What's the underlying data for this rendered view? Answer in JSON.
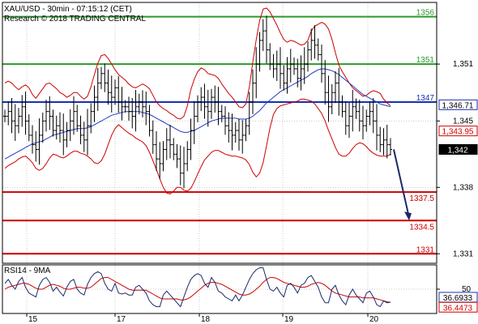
{
  "header": {
    "line1": "XAU/USD - 30min - 07:15:12 (CET)",
    "line2": "Research © 2018 TRADING CENTRAL"
  },
  "colors": {
    "candle": "#000000",
    "band": "#cc0000",
    "ma": "#1f3cc4",
    "support": "#cc0000",
    "resistance": "#2a9a2a",
    "pivot": "#1a2fb0",
    "arrow": "#1a2a6a",
    "rsi": "#1a2a6a",
    "rsi_ma": "#cc0000",
    "grid": "#c8c8c8",
    "frame": "#000000"
  },
  "chart_data": [
    {
      "type": "candlestick",
      "title": "XAU/USD - 30min - 07:15:12 (CET)",
      "subtitle": "Research © 2018 TRADING CENTRAL",
      "ylim": [
        1330,
        1357.5
      ],
      "y_ticks": [
        "1,351",
        "1,345",
        "1,338",
        "1,331"
      ],
      "y_tick_values": [
        1351,
        1345,
        1338,
        1331
      ],
      "x_ticks": [
        "15",
        "17",
        "18",
        "19",
        "20"
      ],
      "grid": true,
      "levels": [
        {
          "label": "1356",
          "value": 1356,
          "kind": "resistance"
        },
        {
          "label": "1351",
          "value": 1351,
          "kind": "resistance"
        },
        {
          "label": "1347",
          "value": 1347,
          "kind": "pivot"
        },
        {
          "label": "1337.5",
          "value": 1337.5,
          "kind": "support"
        },
        {
          "label": "1334.5",
          "value": 1334.5,
          "kind": "support"
        },
        {
          "label": "1331",
          "value": 1331,
          "kind": "support"
        }
      ],
      "price_tags": [
        {
          "label": "1,346.71",
          "value": 1346.71,
          "style": "blue"
        },
        {
          "label": "1,343.95",
          "value": 1343.95,
          "style": "red"
        },
        {
          "label": "1,342",
          "value": 1342,
          "style": "black"
        }
      ],
      "forecast_arrow": {
        "from": 1342,
        "to": 1334.5
      },
      "close": [
        1345.5,
        1346.0,
        1345.0,
        1344.5,
        1345.5,
        1346.5,
        1345.0,
        1343.5,
        1342.5,
        1342.0,
        1343.5,
        1345.0,
        1346.0,
        1345.5,
        1344.0,
        1344.5,
        1344.0,
        1343.0,
        1344.0,
        1345.0,
        1346.0,
        1344.5,
        1343.5,
        1343.0,
        1344.5,
        1346.0,
        1347.5,
        1349.0,
        1350.0,
        1349.0,
        1348.0,
        1347.5,
        1348.5,
        1347.0,
        1346.5,
        1346.5,
        1346.0,
        1345.5,
        1346.5,
        1347.0,
        1346.5,
        1346.0,
        1344.0,
        1342.5,
        1341.0,
        1340.5,
        1342.0,
        1343.0,
        1342.5,
        1341.5,
        1341.0,
        1339.5,
        1340.5,
        1342.0,
        1344.0,
        1345.5,
        1347.0,
        1347.5,
        1346.5,
        1346.0,
        1347.5,
        1347.0,
        1346.0,
        1345.5,
        1344.5,
        1344.0,
        1343.5,
        1344.0,
        1343.0,
        1343.5,
        1344.5,
        1347.0,
        1349.0,
        1351.0,
        1353.5,
        1354.5,
        1352.5,
        1351.0,
        1350.5,
        1351.0,
        1350.0,
        1349.0,
        1350.5,
        1351.0,
        1350.5,
        1349.5,
        1350.5,
        1351.0,
        1352.5,
        1353.5,
        1353.0,
        1352.0,
        1350.0,
        1348.0,
        1346.5,
        1348.0,
        1349.0,
        1347.0,
        1346.0,
        1344.5,
        1345.5,
        1346.5,
        1346.0,
        1345.0,
        1344.5,
        1345.5,
        1346.0,
        1345.0,
        1343.5,
        1342.5,
        1343.0,
        1342.5,
        1342.0
      ],
      "upper_band": [
        1349.0,
        1349.2,
        1349.0,
        1348.6,
        1348.3,
        1348.6,
        1348.8,
        1348.5,
        1347.8,
        1347.4,
        1347.9,
        1348.4,
        1348.9,
        1349.0,
        1348.7,
        1348.4,
        1348.0,
        1347.8,
        1347.5,
        1347.7,
        1348.0,
        1348.0,
        1347.6,
        1347.3,
        1347.6,
        1348.6,
        1349.9,
        1351.1,
        1351.9,
        1352.0,
        1351.6,
        1351.0,
        1350.4,
        1349.9,
        1349.6,
        1349.3,
        1348.9,
        1348.6,
        1348.5,
        1348.7,
        1348.9,
        1348.7,
        1348.4,
        1347.7,
        1347.0,
        1346.6,
        1346.3,
        1346.1,
        1345.8,
        1345.6,
        1345.3,
        1345.2,
        1345.5,
        1346.6,
        1348.3,
        1349.4,
        1350.2,
        1350.6,
        1350.4,
        1350.0,
        1349.9,
        1349.8,
        1349.5,
        1348.9,
        1348.4,
        1347.9,
        1347.5,
        1347.0,
        1346.5,
        1346.4,
        1346.8,
        1348.6,
        1351.2,
        1353.6,
        1355.6,
        1356.8,
        1356.9,
        1356.5,
        1355.8,
        1355.1,
        1354.3,
        1353.6,
        1353.3,
        1353.5,
        1353.4,
        1353.2,
        1353.0,
        1353.1,
        1353.5,
        1354.5,
        1355.0,
        1355.2,
        1355.4,
        1355.2,
        1354.7,
        1353.6,
        1352.2,
        1350.9,
        1350.2,
        1349.6,
        1349.0,
        1348.5,
        1348.2,
        1347.9,
        1347.6,
        1347.7,
        1348.0,
        1348.2,
        1348.1,
        1347.9,
        1347.3,
        1346.9,
        1346.6
      ],
      "lower_band": [
        1340.0,
        1340.3,
        1340.5,
        1340.7,
        1341.0,
        1341.2,
        1341.3,
        1341.0,
        1340.6,
        1340.0,
        1339.8,
        1340.0,
        1340.5,
        1341.1,
        1341.5,
        1341.4,
        1341.2,
        1341.1,
        1341.3,
        1341.6,
        1341.8,
        1341.8,
        1341.6,
        1341.5,
        1341.3,
        1341.0,
        1340.6,
        1340.5,
        1340.8,
        1341.5,
        1342.5,
        1343.5,
        1344.2,
        1344.6,
        1344.3,
        1344.0,
        1343.7,
        1343.5,
        1343.2,
        1343.0,
        1342.8,
        1342.4,
        1341.7,
        1340.8,
        1339.9,
        1338.9,
        1338.0,
        1337.4,
        1337.3,
        1337.6,
        1338.0,
        1338.0,
        1337.7,
        1337.6,
        1337.9,
        1338.6,
        1339.4,
        1340.2,
        1340.9,
        1341.3,
        1341.7,
        1341.9,
        1341.9,
        1341.7,
        1341.5,
        1341.4,
        1341.3,
        1341.3,
        1341.2,
        1341.1,
        1340.9,
        1340.4,
        1339.6,
        1339.1,
        1339.5,
        1340.6,
        1342.4,
        1344.3,
        1345.7,
        1346.3,
        1346.6,
        1346.7,
        1346.8,
        1346.9,
        1347.0,
        1347.1,
        1347.3,
        1347.3,
        1347.2,
        1347.1,
        1346.8,
        1346.3,
        1345.8,
        1345.0,
        1344.0,
        1343.1,
        1342.2,
        1341.5,
        1341.3,
        1341.3,
        1341.6,
        1342.1,
        1342.5,
        1342.7,
        1342.6,
        1342.3,
        1341.9,
        1341.6,
        1341.4,
        1341.3,
        1341.3,
        1341.3,
        1341.5
      ],
      "moving_average": [
        1341.0,
        1341.2,
        1341.4,
        1341.6,
        1341.8,
        1342.0,
        1342.2,
        1342.4,
        1342.6,
        1342.7,
        1342.8,
        1342.9,
        1343.1,
        1343.3,
        1343.5,
        1343.6,
        1343.7,
        1343.8,
        1343.9,
        1344.0,
        1344.1,
        1344.2,
        1344.2,
        1344.2,
        1344.3,
        1344.4,
        1344.6,
        1344.8,
        1345.0,
        1345.2,
        1345.4,
        1345.6,
        1345.7,
        1345.8,
        1345.9,
        1346.0,
        1346.0,
        1346.0,
        1346.0,
        1346.0,
        1345.9,
        1345.8,
        1345.7,
        1345.5,
        1345.3,
        1345.1,
        1344.9,
        1344.7,
        1344.5,
        1344.3,
        1344.1,
        1343.9,
        1343.8,
        1343.8,
        1343.9,
        1344.0,
        1344.2,
        1344.4,
        1344.6,
        1344.8,
        1345.0,
        1345.1,
        1345.2,
        1345.3,
        1345.3,
        1345.3,
        1345.3,
        1345.3,
        1345.2,
        1345.2,
        1345.2,
        1345.3,
        1345.5,
        1345.8,
        1346.1,
        1346.5,
        1346.9,
        1347.2,
        1347.5,
        1347.8,
        1348.1,
        1348.3,
        1348.5,
        1348.7,
        1348.9,
        1349.1,
        1349.3,
        1349.5,
        1349.7,
        1350.0,
        1350.2,
        1350.4,
        1350.5,
        1350.5,
        1350.4,
        1350.3,
        1350.1,
        1349.9,
        1349.6,
        1349.3,
        1349.0,
        1348.7,
        1348.4,
        1348.1,
        1347.8,
        1347.6,
        1347.4,
        1347.2,
        1347.0,
        1346.8,
        1346.7,
        1346.6,
        1346.5
      ]
    },
    {
      "type": "line",
      "title": "RSI14 - 9MA",
      "ylim": [
        25,
        75
      ],
      "y_ticks": [
        "50"
      ],
      "y_tick_values": [
        50
      ],
      "value_tags": [
        {
          "label": "36.6933",
          "value": 36.6933,
          "style": "blue"
        },
        {
          "label": "36.4473",
          "value": 36.4473,
          "style": "red"
        }
      ],
      "series": [
        {
          "values": [
            56,
            60,
            54,
            50,
            58,
            62,
            52,
            46,
            44,
            42,
            54,
            60,
            62,
            57,
            48,
            52,
            47,
            43,
            52,
            58,
            60,
            50,
            46,
            44,
            55,
            62,
            66,
            68,
            66,
            56,
            50,
            48,
            56,
            46,
            45,
            46,
            44,
            44,
            52,
            54,
            50,
            46,
            38,
            34,
            32,
            32,
            44,
            48,
            44,
            40,
            36,
            32,
            42,
            52,
            60,
            64,
            66,
            64,
            56,
            52,
            62,
            57,
            48,
            46,
            42,
            40,
            38,
            44,
            38,
            44,
            52,
            60,
            66,
            70,
            72,
            72,
            60,
            50,
            48,
            52,
            46,
            42,
            54,
            56,
            52,
            46,
            54,
            56,
            62,
            64,
            58,
            52,
            42,
            36,
            36,
            50,
            54,
            44,
            38,
            34,
            44,
            50,
            44,
            40,
            36,
            46,
            48,
            42,
            34,
            32,
            38,
            36,
            36.7
          ]
        },
        {
          "values": [
            50,
            52,
            53,
            54,
            55,
            56,
            56,
            55,
            53,
            51,
            50,
            50,
            52,
            54,
            55,
            54,
            53,
            51,
            50,
            50,
            51,
            52,
            52,
            51,
            51,
            52,
            55,
            58,
            61,
            62,
            62,
            60,
            58,
            56,
            54,
            52,
            50,
            49,
            49,
            49,
            49,
            49,
            47,
            45,
            43,
            41,
            40,
            40,
            40,
            40,
            40,
            39,
            39,
            40,
            42,
            45,
            48,
            51,
            54,
            56,
            57,
            57,
            56,
            55,
            53,
            51,
            49,
            47,
            45,
            44,
            44,
            45,
            47,
            50,
            53,
            57,
            60,
            62,
            62,
            61,
            59,
            57,
            56,
            55,
            54,
            53,
            52,
            52,
            53,
            55,
            56,
            57,
            56,
            54,
            51,
            48,
            46,
            45,
            44,
            43,
            42,
            42,
            42,
            42,
            41,
            41,
            41,
            41,
            40,
            39,
            38,
            37,
            36.4
          ]
        }
      ]
    }
  ]
}
